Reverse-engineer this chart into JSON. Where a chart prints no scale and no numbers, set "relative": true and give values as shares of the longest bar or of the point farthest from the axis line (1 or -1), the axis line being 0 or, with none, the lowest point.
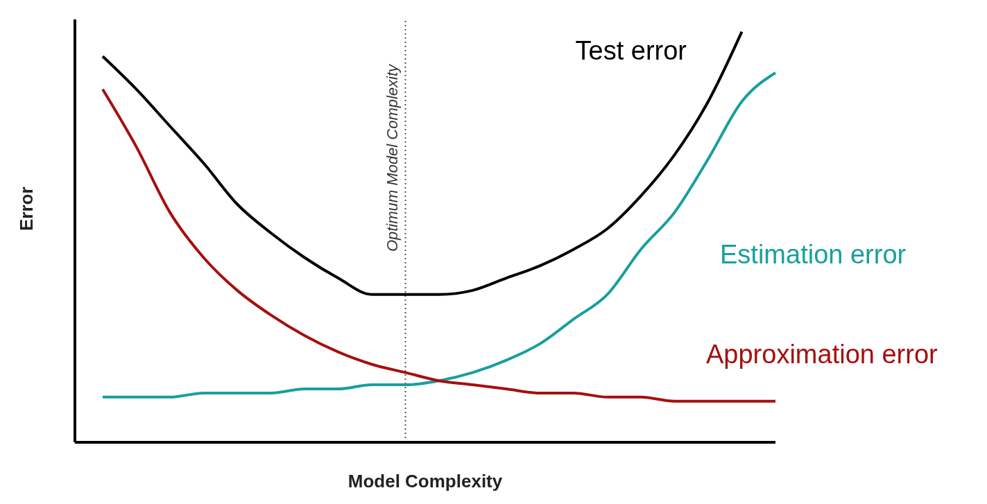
{
  "chart_data": {
    "type": "line",
    "relative": true,
    "xlabel": "Model Complexity",
    "ylabel": "Error",
    "categories": [
      null,
      null,
      null,
      null,
      null,
      null,
      null,
      null,
      null,
      null,
      null,
      null,
      null,
      null,
      null,
      null,
      null,
      null,
      null,
      null,
      null
    ],
    "series": [
      {
        "name": "Test error",
        "color": "#000000",
        "values": [
          0.94,
          0.86,
          0.77,
          0.68,
          0.58,
          0.51,
          0.45,
          0.4,
          0.36,
          0.36,
          0.36,
          0.37,
          0.4,
          0.43,
          0.47,
          0.52,
          0.6,
          0.7,
          0.83,
          1.0,
          null
        ]
      },
      {
        "name": "Estimation error",
        "color": "#1a9e9e",
        "values": [
          0.11,
          0.11,
          0.11,
          0.12,
          0.12,
          0.12,
          0.13,
          0.13,
          0.14,
          0.14,
          0.15,
          0.17,
          0.2,
          0.24,
          0.3,
          0.36,
          0.47,
          0.56,
          0.69,
          0.83,
          0.9
        ]
      },
      {
        "name": "Approximation error",
        "color": "#a50f0f",
        "values": [
          0.86,
          0.72,
          0.56,
          0.45,
          0.37,
          0.31,
          0.26,
          0.22,
          0.19,
          0.17,
          0.15,
          0.14,
          0.13,
          0.12,
          0.12,
          0.11,
          0.11,
          0.1,
          0.1,
          0.1,
          0.1
        ]
      }
    ],
    "annotations": [
      "Optimum Model Complexity"
    ],
    "grid": false,
    "legend": false,
    "marker": "none",
    "line_style": "solid"
  }
}
